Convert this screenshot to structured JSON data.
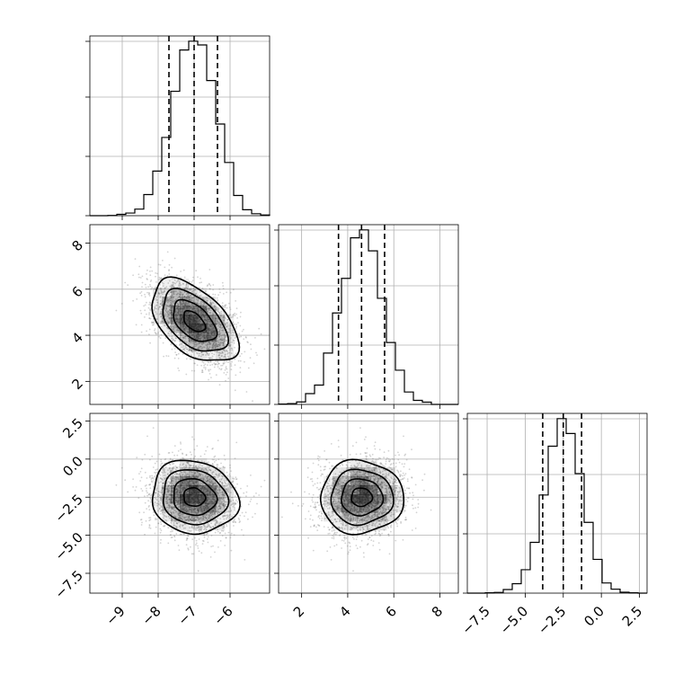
{
  "chart_data": {
    "type": "corner",
    "colors": {
      "line": "#000000",
      "grid": "#b0b0b0",
      "scatter": "#808080",
      "density": "#000000"
    },
    "parameters": [
      {
        "id": "p0",
        "range": [
          -9.9,
          -4.9
        ],
        "ticks": [
          -9,
          -8,
          -7,
          -6
        ],
        "tick_labels": [
          "−9",
          "−8",
          "−7",
          "−6"
        ],
        "mean": -7.0,
        "std": 0.6,
        "quantiles": [
          -7.7,
          -7.0,
          -6.35
        ]
      },
      {
        "id": "p1",
        "range": [
          1.0,
          8.8
        ],
        "ticks": [
          2,
          4,
          6,
          8
        ],
        "tick_labels": [
          "2",
          "4",
          "6",
          "8"
        ],
        "mean": 4.6,
        "std": 0.9,
        "quantiles": [
          3.6,
          4.6,
          5.6
        ]
      },
      {
        "id": "p2",
        "range": [
          -8.8,
          3.0
        ],
        "ticks": [
          -7.5,
          -5.0,
          -2.5,
          0.0,
          2.5
        ],
        "tick_labels": [
          "−7.5",
          "−5.0",
          "−2.5",
          "0.0",
          "2.5"
        ],
        "mean": -2.5,
        "std": 1.2,
        "quantiles": [
          -3.85,
          -2.5,
          -1.3
        ]
      }
    ],
    "correlations": {
      "p0_p1": -0.5,
      "p0_p2": -0.1,
      "p1_p2": 0.0
    },
    "histogram_bins": 20,
    "contour_levels": [
      0.118,
      0.393,
      0.675,
      0.865
    ],
    "n_samples": 5000
  }
}
